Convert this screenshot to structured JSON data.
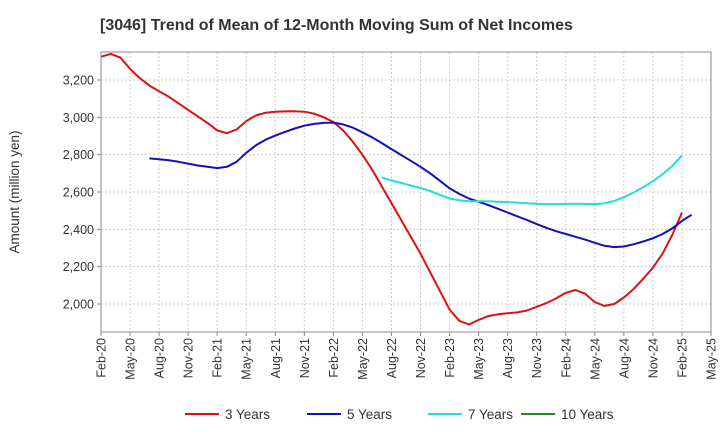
{
  "chart_data": {
    "type": "line",
    "title": "[3046]  Trend of Mean of 12-Month Moving Sum of Net Incomes",
    "ylabel": "Amount (million yen)",
    "xlabel": "",
    "ylim": [
      1850,
      3350
    ],
    "yticks": [
      2000,
      2200,
      2400,
      2600,
      2800,
      3000,
      3200
    ],
    "ytick_labels": [
      "2,000",
      "2,200",
      "2,400",
      "2,600",
      "2,800",
      "3,000",
      "3,200"
    ],
    "xlim": [
      "2020-02",
      "2025-05"
    ],
    "xticks": [
      "2020-02",
      "2020-05",
      "2020-08",
      "2020-11",
      "2021-02",
      "2021-05",
      "2021-08",
      "2021-11",
      "2022-02",
      "2022-05",
      "2022-08",
      "2022-11",
      "2023-02",
      "2023-05",
      "2023-08",
      "2023-11",
      "2024-02",
      "2024-05",
      "2024-08",
      "2024-11",
      "2025-02",
      "2025-05"
    ],
    "xtick_labels": [
      "Feb-20",
      "May-20",
      "Aug-20",
      "Nov-20",
      "Feb-21",
      "May-21",
      "Aug-21",
      "Nov-21",
      "Feb-22",
      "May-22",
      "Aug-22",
      "Nov-22",
      "Feb-23",
      "May-23",
      "Aug-23",
      "Nov-23",
      "Feb-24",
      "May-24",
      "Aug-24",
      "Nov-24",
      "Feb-25",
      "May-25"
    ],
    "grid": true,
    "legend_position": "bottom",
    "series": [
      {
        "name": "3 Years",
        "color": "#dd1111",
        "points": [
          [
            "2020-02",
            3325
          ],
          [
            "2020-03",
            3340
          ],
          [
            "2020-04",
            3320
          ],
          [
            "2020-05",
            3260
          ],
          [
            "2020-06",
            3210
          ],
          [
            "2020-07",
            3170
          ],
          [
            "2020-08",
            3140
          ],
          [
            "2020-09",
            3110
          ],
          [
            "2020-10",
            3075
          ],
          [
            "2020-11",
            3040
          ],
          [
            "2020-12",
            3005
          ],
          [
            "2021-01",
            2970
          ],
          [
            "2021-02",
            2930
          ],
          [
            "2021-03",
            2915
          ],
          [
            "2021-04",
            2935
          ],
          [
            "2021-05",
            2980
          ],
          [
            "2021-06",
            3010
          ],
          [
            "2021-07",
            3025
          ],
          [
            "2021-08",
            3030
          ],
          [
            "2021-09",
            3032
          ],
          [
            "2021-10",
            3033
          ],
          [
            "2021-11",
            3030
          ],
          [
            "2021-12",
            3020
          ],
          [
            "2022-01",
            3000
          ],
          [
            "2022-02",
            2975
          ],
          [
            "2022-03",
            2930
          ],
          [
            "2022-04",
            2870
          ],
          [
            "2022-05",
            2800
          ],
          [
            "2022-06",
            2720
          ],
          [
            "2022-07",
            2630
          ],
          [
            "2022-08",
            2540
          ],
          [
            "2022-09",
            2450
          ],
          [
            "2022-10",
            2360
          ],
          [
            "2022-11",
            2270
          ],
          [
            "2022-12",
            2170
          ],
          [
            "2023-01",
            2070
          ],
          [
            "2023-02",
            1970
          ],
          [
            "2023-03",
            1910
          ],
          [
            "2023-04",
            1890
          ],
          [
            "2023-05",
            1915
          ],
          [
            "2023-06",
            1935
          ],
          [
            "2023-07",
            1945
          ],
          [
            "2023-08",
            1950
          ],
          [
            "2023-09",
            1955
          ],
          [
            "2023-10",
            1965
          ],
          [
            "2023-11",
            1985
          ],
          [
            "2023-12",
            2005
          ],
          [
            "2024-01",
            2030
          ],
          [
            "2024-02",
            2060
          ],
          [
            "2024-03",
            2075
          ],
          [
            "2024-04",
            2055
          ],
          [
            "2024-05",
            2010
          ],
          [
            "2024-06",
            1990
          ],
          [
            "2024-07",
            2000
          ],
          [
            "2024-08",
            2035
          ],
          [
            "2024-09",
            2080
          ],
          [
            "2024-10",
            2135
          ],
          [
            "2024-11",
            2195
          ],
          [
            "2024-12",
            2270
          ],
          [
            "2025-01",
            2370
          ],
          [
            "2025-02",
            2490
          ]
        ]
      },
      {
        "name": "5 Years",
        "color": "#1111bb",
        "points": [
          [
            "2020-07",
            2780
          ],
          [
            "2020-08",
            2775
          ],
          [
            "2020-09",
            2770
          ],
          [
            "2020-10",
            2762
          ],
          [
            "2020-11",
            2752
          ],
          [
            "2020-12",
            2742
          ],
          [
            "2021-01",
            2735
          ],
          [
            "2021-02",
            2728
          ],
          [
            "2021-03",
            2735
          ],
          [
            "2021-04",
            2762
          ],
          [
            "2021-05",
            2810
          ],
          [
            "2021-06",
            2850
          ],
          [
            "2021-07",
            2880
          ],
          [
            "2021-08",
            2902
          ],
          [
            "2021-09",
            2922
          ],
          [
            "2021-10",
            2940
          ],
          [
            "2021-11",
            2955
          ],
          [
            "2021-12",
            2965
          ],
          [
            "2022-01",
            2970
          ],
          [
            "2022-02",
            2972
          ],
          [
            "2022-03",
            2962
          ],
          [
            "2022-04",
            2945
          ],
          [
            "2022-05",
            2920
          ],
          [
            "2022-06",
            2893
          ],
          [
            "2022-07",
            2862
          ],
          [
            "2022-08",
            2830
          ],
          [
            "2022-09",
            2798
          ],
          [
            "2022-10",
            2767
          ],
          [
            "2022-11",
            2735
          ],
          [
            "2022-12",
            2700
          ],
          [
            "2023-01",
            2660
          ],
          [
            "2023-02",
            2620
          ],
          [
            "2023-03",
            2590
          ],
          [
            "2023-04",
            2565
          ],
          [
            "2023-05",
            2548
          ],
          [
            "2023-06",
            2530
          ],
          [
            "2023-07",
            2510
          ],
          [
            "2023-08",
            2490
          ],
          [
            "2023-09",
            2470
          ],
          [
            "2023-10",
            2450
          ],
          [
            "2023-11",
            2428
          ],
          [
            "2023-12",
            2408
          ],
          [
            "2024-01",
            2390
          ],
          [
            "2024-02",
            2375
          ],
          [
            "2024-03",
            2360
          ],
          [
            "2024-04",
            2345
          ],
          [
            "2024-05",
            2328
          ],
          [
            "2024-06",
            2312
          ],
          [
            "2024-07",
            2305
          ],
          [
            "2024-08",
            2308
          ],
          [
            "2024-09",
            2320
          ],
          [
            "2024-10",
            2335
          ],
          [
            "2024-11",
            2352
          ],
          [
            "2024-12",
            2375
          ],
          [
            "2025-01",
            2405
          ],
          [
            "2025-02",
            2445
          ],
          [
            "2025-03",
            2478
          ]
        ]
      },
      {
        "name": "7 Years",
        "color": "#22dddd",
        "points": [
          [
            "2022-07",
            2678
          ],
          [
            "2022-08",
            2662
          ],
          [
            "2022-09",
            2648
          ],
          [
            "2022-10",
            2635
          ],
          [
            "2022-11",
            2622
          ],
          [
            "2022-12",
            2605
          ],
          [
            "2023-01",
            2585
          ],
          [
            "2023-02",
            2565
          ],
          [
            "2023-03",
            2555
          ],
          [
            "2023-04",
            2550
          ],
          [
            "2023-05",
            2550
          ],
          [
            "2023-06",
            2550
          ],
          [
            "2023-07",
            2548
          ],
          [
            "2023-08",
            2546
          ],
          [
            "2023-09",
            2543
          ],
          [
            "2023-10",
            2540
          ],
          [
            "2023-11",
            2537
          ],
          [
            "2023-12",
            2535
          ],
          [
            "2024-01",
            2535
          ],
          [
            "2024-02",
            2536
          ],
          [
            "2024-03",
            2537
          ],
          [
            "2024-04",
            2536
          ],
          [
            "2024-05",
            2535
          ],
          [
            "2024-06",
            2540
          ],
          [
            "2024-07",
            2552
          ],
          [
            "2024-08",
            2572
          ],
          [
            "2024-09",
            2597
          ],
          [
            "2024-10",
            2625
          ],
          [
            "2024-11",
            2658
          ],
          [
            "2024-12",
            2695
          ],
          [
            "2025-01",
            2740
          ],
          [
            "2025-02",
            2795
          ]
        ]
      },
      {
        "name": "10 Years",
        "color": "#228822",
        "points": []
      }
    ]
  }
}
